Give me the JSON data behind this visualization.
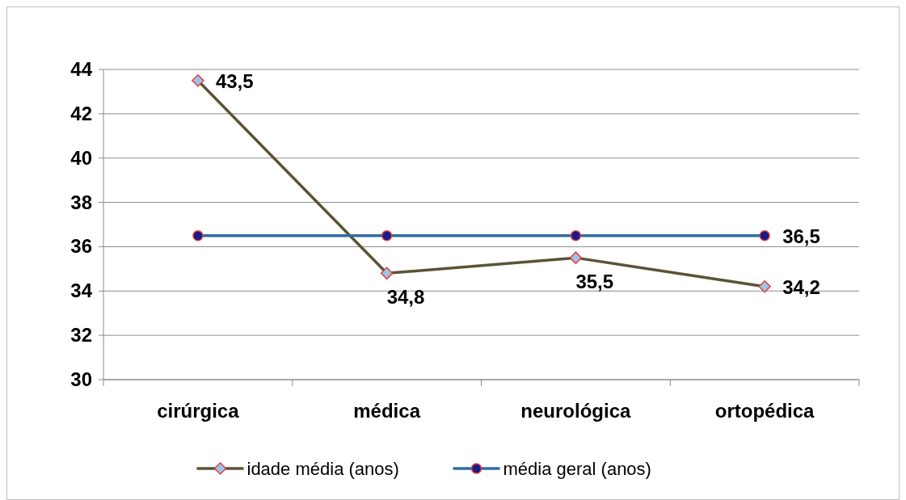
{
  "chart_data": {
    "type": "line",
    "categories": [
      "cirúrgica",
      "médica",
      "neurológica",
      "ortopédica"
    ],
    "ylim": [
      30,
      44
    ],
    "yticks": [
      30,
      32,
      34,
      36,
      38,
      40,
      42,
      44
    ],
    "grid": "y",
    "legend": "bottom",
    "series": [
      {
        "name": "idade média (anos)",
        "color": "#5b5335",
        "marker": "diamond",
        "values": [
          43.5,
          34.8,
          35.5,
          34.2
        ],
        "value_labels": [
          "43,5",
          "34,8",
          "35,5",
          "34,2"
        ]
      },
      {
        "name": "média geral (anos)",
        "color": "#2e6ca4",
        "marker": "circle",
        "values": [
          36.5,
          36.5,
          36.5,
          36.5
        ],
        "value_labels": [
          null,
          null,
          null,
          "36,5"
        ]
      }
    ]
  }
}
